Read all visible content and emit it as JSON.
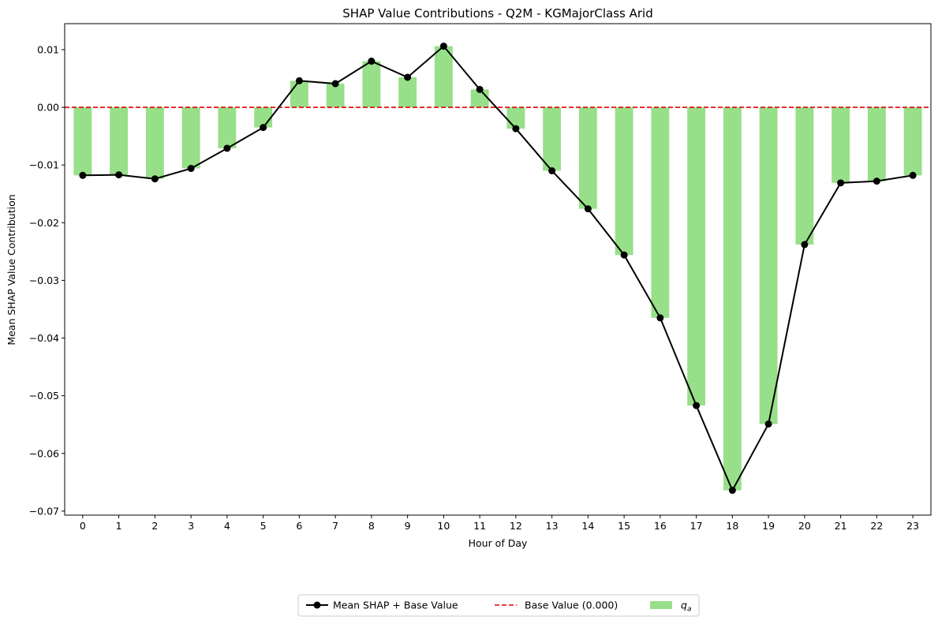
{
  "chart_data": {
    "type": "bar",
    "title": "SHAP Value Contributions - Q2M - KGMajorClass Arid",
    "xlabel": "Hour of Day",
    "ylabel": "Mean SHAP Value Contribution",
    "categories": [
      "0",
      "1",
      "2",
      "3",
      "4",
      "5",
      "6",
      "7",
      "8",
      "9",
      "10",
      "11",
      "12",
      "13",
      "14",
      "15",
      "16",
      "17",
      "18",
      "19",
      "20",
      "21",
      "22",
      "23"
    ],
    "ylim": [
      -0.0707,
      0.0145
    ],
    "yticks": [
      0.01,
      0.0,
      -0.01,
      -0.02,
      -0.03,
      -0.04,
      -0.05,
      -0.06,
      -0.07
    ],
    "ytick_labels": [
      "0.01",
      "0.00",
      "−0.01",
      "−0.02",
      "−0.03",
      "−0.04",
      "−0.05",
      "−0.06",
      "−0.07"
    ],
    "base_value": 0.0,
    "grid": false,
    "legend_position": "bottom-center",
    "series": [
      {
        "name": "q",
        "name_subscript": "a",
        "kind": "bar",
        "color": "#98df8a",
        "values": [
          -0.0118,
          -0.0117,
          -0.0124,
          -0.0106,
          -0.0071,
          -0.0035,
          0.0046,
          0.0041,
          0.008,
          0.0052,
          0.0106,
          0.0031,
          -0.0037,
          -0.011,
          -0.0176,
          -0.0256,
          -0.0365,
          -0.0517,
          -0.0664,
          -0.0549,
          -0.0238,
          -0.0131,
          -0.0128,
          -0.0118
        ]
      },
      {
        "name": "Mean SHAP + Base Value",
        "kind": "line",
        "color": "#000000",
        "values": [
          -0.0118,
          -0.0117,
          -0.0124,
          -0.0106,
          -0.0071,
          -0.0035,
          0.0046,
          0.0041,
          0.008,
          0.0052,
          0.0106,
          0.0031,
          -0.0037,
          -0.011,
          -0.0176,
          -0.0256,
          -0.0365,
          -0.0517,
          -0.0664,
          -0.0549,
          -0.0238,
          -0.0131,
          -0.0128,
          -0.0118
        ]
      },
      {
        "name": "Base Value (0.000)",
        "kind": "hline",
        "color": "#e00000",
        "value": 0.0
      }
    ]
  }
}
